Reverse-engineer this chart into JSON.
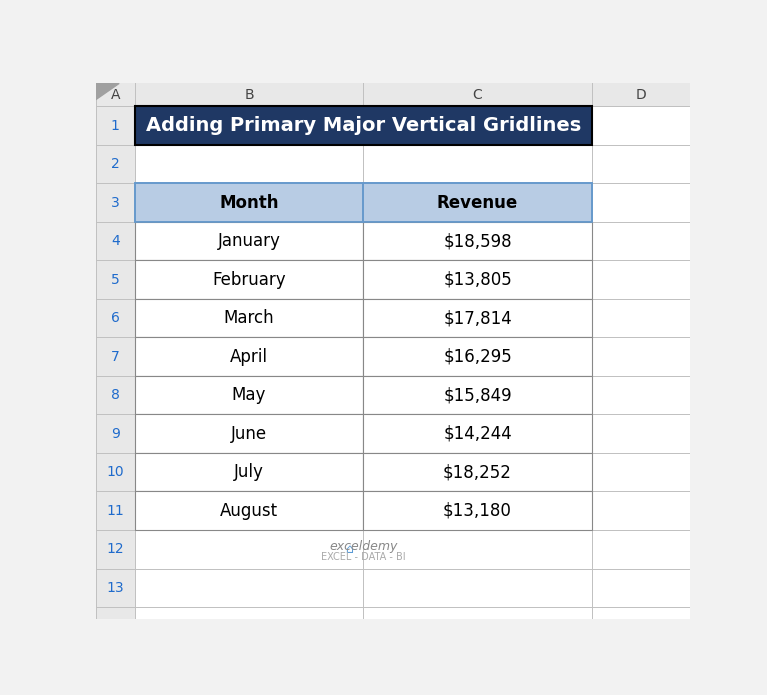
{
  "title": "Adding Primary Major Vertical Gridlines",
  "title_bg": "#1F3864",
  "title_text_color": "#FFFFFF",
  "header_bg": "#B8CCE4",
  "header_text_color": "#000000",
  "table_bg": "#FFFFFF",
  "columns": [
    "Month",
    "Revenue"
  ],
  "rows": [
    [
      "January",
      "$18,598"
    ],
    [
      "February",
      "$13,805"
    ],
    [
      "March",
      "$17,814"
    ],
    [
      "April",
      "$16,295"
    ],
    [
      "May",
      "$15,849"
    ],
    [
      "June",
      "$14,244"
    ],
    [
      "July",
      "$18,252"
    ],
    [
      "August",
      "$13,180"
    ]
  ],
  "col_labels": [
    "A",
    "B",
    "C",
    "D"
  ],
  "row_labels": [
    "1",
    "2",
    "3",
    "4",
    "5",
    "6",
    "7",
    "8",
    "9",
    "10",
    "11",
    "12",
    "13"
  ],
  "watermark_text": "exceldemy",
  "watermark_subtext": "EXCEL - DATA - BI",
  "fig_width": 7.67,
  "fig_height": 6.95,
  "spreadsheet_bg": "#F2F2F2",
  "col_header_bg": "#E8E8E8",
  "cell_bg": "#FFFFFF",
  "border_color": "#C0C0C0",
  "label_color": "#444444",
  "row_label_color": "#1F6BCC"
}
